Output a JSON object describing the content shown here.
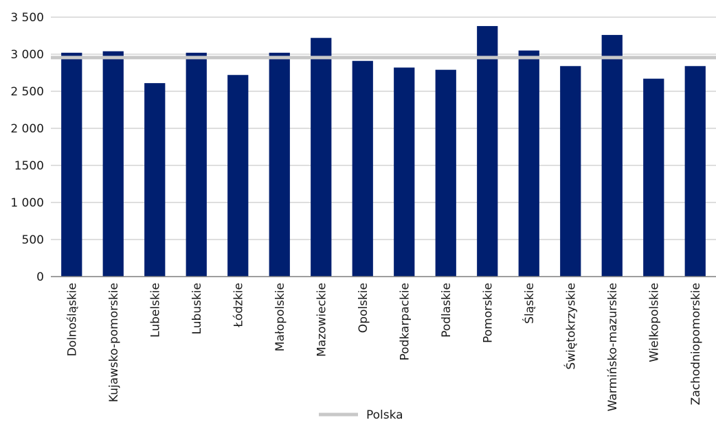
{
  "chart_data": {
    "type": "bar",
    "title": "",
    "xlabel": "",
    "ylabel": "",
    "ylim": [
      0,
      3500
    ],
    "yticks": [
      0,
      500,
      1000,
      1500,
      2000,
      2500,
      3000,
      3500
    ],
    "ytick_labels": [
      "0",
      "500",
      "1 000",
      "1500",
      "2 000",
      "2 500",
      "3 000",
      "3 500"
    ],
    "grid": true,
    "categories": [
      "Dolnośląskie",
      "Kujawsko-pomorskie",
      "Lubelskie",
      "Lubuskie",
      "Łódzkie",
      "Małopolskie",
      "Mazowieckie",
      "Opolskie",
      "Podkarpackie",
      "Podlaskie",
      "Pomorskie",
      "Śląskie",
      "Świętokrzyskie",
      "Warmińsko-mazurskie",
      "Wielkopolskie",
      "Zachodniopomorskie"
    ],
    "series": [
      {
        "values": [
          3020,
          3040,
          2610,
          3020,
          2720,
          3020,
          3220,
          2910,
          2820,
          2790,
          3380,
          3050,
          2840,
          3260,
          2670,
          2840
        ],
        "color": "#001f70"
      }
    ],
    "reference_lines": [
      {
        "name": "Polska",
        "value": 2955,
        "color": "#c8c8c8"
      }
    ],
    "legend": {
      "position": "bottom",
      "entries": [
        "Polska"
      ]
    },
    "colors": {
      "bar": "#001f70",
      "reference": "#c8c8c8",
      "grid": "#bdbdbd",
      "axis": "#7f7f7f"
    }
  }
}
